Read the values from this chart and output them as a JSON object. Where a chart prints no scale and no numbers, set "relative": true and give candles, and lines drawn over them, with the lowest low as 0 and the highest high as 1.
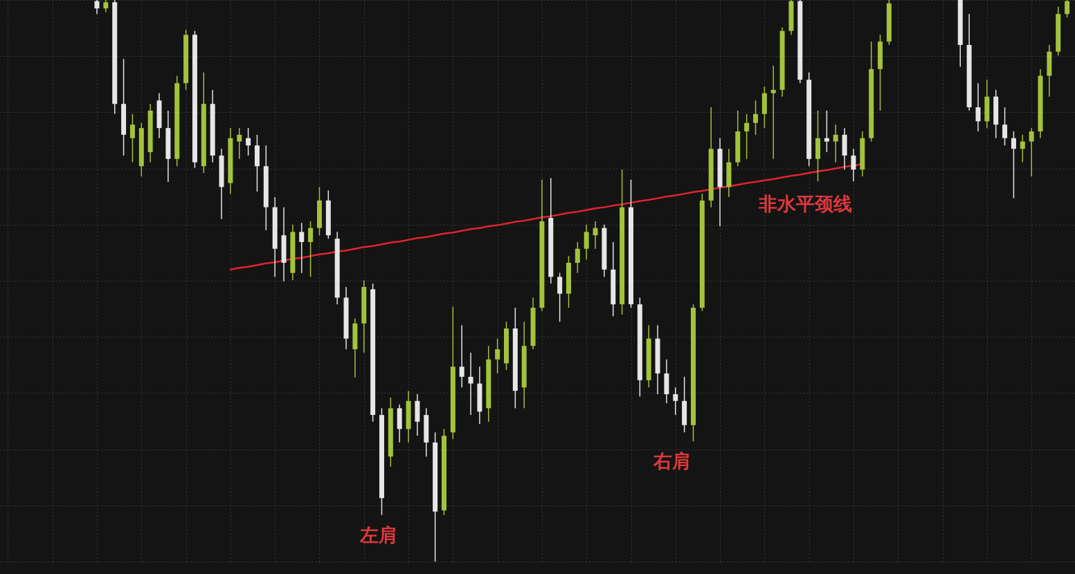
{
  "chart_data": {
    "type": "candlestick",
    "relative": true,
    "grid": true,
    "categories": [
      null,
      null,
      null,
      null,
      null,
      null,
      null,
      null,
      null,
      null,
      null,
      null,
      null,
      null,
      null,
      null,
      null,
      null,
      null,
      null,
      null,
      null,
      null,
      null,
      null,
      null,
      null,
      null,
      null,
      null,
      null,
      null,
      null,
      null,
      null,
      null,
      null,
      null,
      null,
      null,
      null,
      null,
      null,
      null,
      null,
      null,
      null,
      null,
      null,
      null,
      null,
      null,
      null,
      null,
      null,
      null,
      null,
      null,
      null,
      null,
      null,
      null,
      null,
      null,
      null,
      null,
      null,
      null,
      null,
      null,
      null,
      null,
      null,
      null,
      null,
      null,
      null,
      null,
      null,
      null,
      null,
      null,
      null,
      null,
      null,
      null,
      null,
      null,
      null,
      null,
      null,
      null,
      null,
      null,
      null,
      null,
      null,
      null,
      null,
      null,
      null,
      null,
      null,
      null,
      null,
      null,
      null,
      null,
      null,
      null,
      null,
      null,
      null,
      null,
      null,
      null,
      null,
      null,
      null,
      null
    ],
    "ohlc": [
      null,
      null,
      null,
      null,
      null,
      null,
      null,
      null,
      null,
      null,
      [
        0.998,
        1.0,
        0.975,
        0.985
      ],
      [
        0.985,
        1.0,
        0.978,
        0.996
      ],
      [
        0.996,
        1.0,
        0.797,
        0.815
      ],
      [
        0.815,
        0.895,
        0.723,
        0.76
      ],
      [
        0.754,
        0.797,
        0.711,
        0.778
      ],
      [
        0.704,
        0.781,
        0.686,
        0.772
      ],
      [
        0.729,
        0.815,
        0.711,
        0.803
      ],
      [
        0.821,
        0.834,
        0.754,
        0.772
      ],
      [
        0.772,
        0.803,
        0.676,
        0.717
      ],
      [
        0.717,
        0.865,
        0.704,
        0.852
      ],
      [
        0.852,
        0.947,
        0.84,
        0.938
      ],
      [
        0.938,
        0.945,
        0.701,
        0.711
      ],
      [
        0.704,
        0.871,
        0.692,
        0.815
      ],
      [
        0.815,
        0.84,
        0.711,
        0.723
      ],
      [
        0.723,
        0.735,
        0.61,
        0.667
      ],
      [
        0.674,
        0.772,
        0.655,
        0.754
      ],
      [
        0.748,
        0.772,
        0.717,
        0.76
      ],
      [
        0.754,
        0.772,
        0.723,
        0.741
      ],
      [
        0.741,
        0.76,
        0.659,
        0.704
      ],
      [
        0.704,
        0.741,
        0.59,
        0.631
      ],
      [
        0.631,
        0.649,
        0.507,
        0.557
      ],
      [
        0.581,
        0.631,
        0.499,
        0.532
      ],
      [
        0.514,
        0.6,
        0.501,
        0.587
      ],
      [
        0.587,
        0.603,
        0.514,
        0.569
      ],
      [
        0.569,
        0.606,
        0.507,
        0.594
      ],
      [
        0.594,
        0.667,
        0.581,
        0.643
      ],
      [
        0.643,
        0.661,
        0.575,
        0.581
      ],
      [
        0.575,
        0.587,
        0.458,
        0.47
      ],
      [
        0.47,
        0.489,
        0.378,
        0.397
      ],
      [
        0.378,
        0.433,
        0.328,
        0.424
      ],
      [
        0.424,
        0.501,
        0.372,
        0.489
      ],
      [
        0.485,
        0.495,
        0.249,
        0.261
      ],
      [
        0.261,
        0.273,
        0.083,
        0.113
      ],
      [
        0.187,
        0.292,
        0.169,
        0.273
      ],
      [
        0.273,
        0.28,
        0.212,
        0.236
      ],
      [
        0.236,
        0.304,
        0.212,
        0.286
      ],
      [
        0.286,
        0.298,
        0.224,
        0.249
      ],
      [
        0.261,
        0.273,
        0.187,
        0.212
      ],
      [
        0.212,
        0.23,
        0.0,
        0.089
      ],
      [
        0.091,
        0.236,
        0.083,
        0.224
      ],
      [
        0.23,
        0.454,
        0.218,
        0.347
      ],
      [
        0.347,
        0.421,
        0.31,
        0.329
      ],
      [
        0.329,
        0.372,
        0.261,
        0.317
      ],
      [
        0.317,
        0.347,
        0.245,
        0.267
      ],
      [
        0.273,
        0.384,
        0.249,
        0.36
      ],
      [
        0.36,
        0.397,
        0.335,
        0.378
      ],
      [
        0.353,
        0.427,
        0.341,
        0.415
      ],
      [
        0.415,
        0.452,
        0.273,
        0.304
      ],
      [
        0.31,
        0.427,
        0.273,
        0.384
      ],
      [
        0.384,
        0.47,
        0.378,
        0.452
      ],
      [
        0.452,
        0.68,
        0.446,
        0.606
      ],
      [
        0.612,
        0.683,
        0.495,
        0.507
      ],
      [
        0.507,
        0.514,
        0.427,
        0.477
      ],
      [
        0.477,
        0.544,
        0.452,
        0.532
      ],
      [
        0.532,
        0.569,
        0.514,
        0.557
      ],
      [
        0.557,
        0.6,
        0.538,
        0.587
      ],
      [
        0.581,
        0.606,
        0.557,
        0.594
      ],
      [
        0.594,
        0.6,
        0.507,
        0.52
      ],
      [
        0.52,
        0.569,
        0.437,
        0.458
      ],
      [
        0.458,
        0.698,
        0.44,
        0.631
      ],
      [
        0.631,
        0.68,
        0.452,
        0.458
      ],
      [
        0.458,
        0.47,
        0.294,
        0.323
      ],
      [
        0.323,
        0.421,
        0.31,
        0.397
      ],
      [
        0.397,
        0.421,
        0.298,
        0.335
      ],
      [
        0.335,
        0.36,
        0.282,
        0.298
      ],
      [
        0.298,
        0.31,
        0.261,
        0.286
      ],
      [
        0.286,
        0.329,
        0.23,
        0.243
      ],
      [
        0.243,
        0.458,
        0.214,
        0.452
      ],
      [
        0.452,
        0.655,
        0.446,
        0.643
      ],
      [
        0.643,
        0.809,
        0.631,
        0.735
      ],
      [
        0.735,
        0.754,
        0.597,
        0.667
      ],
      [
        0.667,
        0.735,
        0.649,
        0.711
      ],
      [
        0.711,
        0.803,
        0.704,
        0.766
      ],
      [
        0.766,
        0.797,
        0.717,
        0.781
      ],
      [
        0.781,
        0.821,
        0.76,
        0.797
      ],
      [
        0.797,
        0.846,
        0.772,
        0.834
      ],
      [
        0.834,
        0.883,
        0.717,
        0.84
      ],
      [
        0.84,
        0.951,
        0.828,
        0.945
      ],
      [
        0.945,
        1.0,
        0.938,
        0.998
      ],
      [
        0.998,
        1.0,
        0.852,
        0.858
      ],
      [
        0.858,
        0.871,
        0.704,
        0.717
      ],
      [
        0.717,
        0.803,
        0.677,
        0.754
      ],
      [
        0.754,
        0.803,
        0.729,
        0.748
      ],
      [
        0.748,
        0.778,
        0.711,
        0.76
      ],
      [
        0.76,
        0.772,
        0.698,
        0.723
      ],
      [
        0.723,
        0.735,
        0.677,
        0.698
      ],
      [
        0.698,
        0.766,
        0.686,
        0.754
      ],
      [
        0.754,
        0.926,
        0.748,
        0.877
      ],
      [
        0.877,
        0.938,
        0.803,
        0.926
      ],
      [
        0.926,
        1.0,
        0.92,
        0.994
      ],
      null,
      null,
      null,
      null,
      null,
      null,
      null,
      [
        1.0,
        1.0,
        0.881,
        0.92
      ],
      [
        0.92,
        0.975,
        0.803,
        0.809
      ],
      [
        0.809,
        0.852,
        0.766,
        0.784
      ],
      [
        0.784,
        0.858,
        0.772,
        0.828
      ],
      [
        0.828,
        0.84,
        0.754,
        0.778
      ],
      [
        0.778,
        0.809,
        0.741,
        0.754
      ],
      [
        0.754,
        0.766,
        0.647,
        0.735
      ],
      [
        0.735,
        0.76,
        0.711,
        0.748
      ],
      [
        0.748,
        0.772,
        0.686,
        0.766
      ],
      [
        0.766,
        0.877,
        0.754,
        0.865
      ],
      [
        0.865,
        0.92,
        0.828,
        0.908
      ],
      [
        0.908,
        0.988,
        0.901,
        0.975
      ],
      [
        0.975,
        1.0,
        0.969,
        0.998
      ]
    ],
    "colors": [
      null,
      null,
      null,
      null,
      null,
      null,
      null,
      null,
      null,
      null,
      "#e6e6e6",
      "#a4c23c",
      "#e6e6e6",
      "#e6e6e6",
      "#a4c23c",
      "#a4c23c",
      "#a4c23c",
      "#e6e6e6",
      "#e6e6e6",
      "#a4c23c",
      "#a4c23c",
      "#e6e6e6",
      "#a4c23c",
      "#e6e6e6",
      "#e6e6e6",
      "#a4c23c",
      "#a4c23c",
      "#e6e6e6",
      "#e6e6e6",
      "#e6e6e6",
      "#e6e6e6",
      "#e6e6e6",
      "#a4c23c",
      "#e6e6e6",
      "#a4c23c",
      "#a4c23c",
      "#e6e6e6",
      "#e6e6e6",
      "#e6e6e6",
      "#a4c23c",
      "#a4c23c",
      "#e6e6e6",
      "#e6e6e6",
      "#a4c23c",
      "#e6e6e6",
      "#a4c23c",
      "#e6e6e6",
      "#e6e6e6",
      "#e6e6e6",
      "#a4c23c",
      "#a4c23c",
      "#e6e6e6",
      "#e6e6e6",
      "#e6e6e6",
      "#a4c23c",
      "#a4c23c",
      "#a4c23c",
      "#e6e6e6",
      "#a4c23c",
      "#a4c23c",
      "#a4c23c",
      "#e6e6e6",
      "#e6e6e6",
      "#a4c23c",
      "#a4c23c",
      "#a4c23c",
      "#a4c23c",
      "#e6e6e6",
      "#e6e6e6",
      "#a4c23c",
      "#e6e6e6",
      "#e6e6e6",
      "#a4c23c",
      "#e6e6e6",
      "#e6e6e6",
      "#e6e6e6",
      "#e6e6e6",
      "#a4c23c",
      "#a4c23c",
      "#a4c23c",
      "#e6e6e6",
      "#a4c23c",
      "#a4c23c",
      "#a4c23c",
      "#a4c23c",
      "#a4c23c",
      "#a4c23c",
      "#a4c23c",
      "#a4c23c",
      "#e6e6e6",
      "#e6e6e6",
      "#a4c23c",
      "#e6e6e6",
      "#a4c23c",
      "#e6e6e6",
      "#e6e6e6",
      "#a4c23c",
      "#a4c23c",
      "#a4c23c",
      "#a4c23c",
      null,
      null,
      null,
      null,
      null,
      null,
      null,
      "#e6e6e6",
      "#e6e6e6",
      "#e6e6e6",
      "#a4c23c",
      "#e6e6e6",
      "#e6e6e6",
      "#e6e6e6",
      "#a4c23c",
      "#a4c23c",
      "#a4c23c",
      "#a4c23c",
      "#a4c23c",
      "#a4c23c"
    ],
    "series": [
      {
        "type": "line",
        "color": "#e2242c",
        "values": [
          null,
          null,
          null,
          null,
          null,
          null,
          null,
          null,
          null,
          null,
          null,
          null,
          null,
          null,
          null,
          null,
          null,
          null,
          null,
          null,
          null,
          null,
          null,
          null,
          null,
          0.52,
          0.523,
          0.525,
          0.528,
          0.531,
          0.533,
          0.536,
          0.539,
          0.541,
          0.544,
          0.547,
          0.549,
          0.552,
          0.554,
          0.557,
          0.56,
          0.562,
          0.565,
          0.568,
          0.57,
          0.573,
          0.576,
          0.578,
          0.581,
          0.584,
          0.586,
          0.589,
          0.592,
          0.594,
          0.597,
          0.599,
          0.602,
          0.605,
          0.607,
          0.61,
          0.613,
          0.615,
          0.618,
          0.621,
          0.623,
          0.626,
          0.629,
          0.631,
          0.634,
          0.636,
          0.639,
          0.642,
          0.644,
          0.647,
          0.65,
          0.652,
          0.655,
          0.658,
          0.66,
          0.663,
          0.666,
          0.668,
          0.671,
          0.674,
          0.676,
          0.679,
          0.681,
          0.684,
          0.687,
          0.689,
          0.692,
          0.695,
          0.697,
          0.7,
          0.703,
          0.705,
          0.708,
          null,
          null,
          null,
          null,
          null,
          null,
          null,
          null,
          null,
          null,
          null,
          null,
          null,
          null,
          null,
          null,
          null,
          null,
          null,
          null,
          null,
          null,
          null
        ]
      }
    ],
    "annotations": [
      "左肩",
      "右肩",
      "非水平颈线"
    ]
  }
}
